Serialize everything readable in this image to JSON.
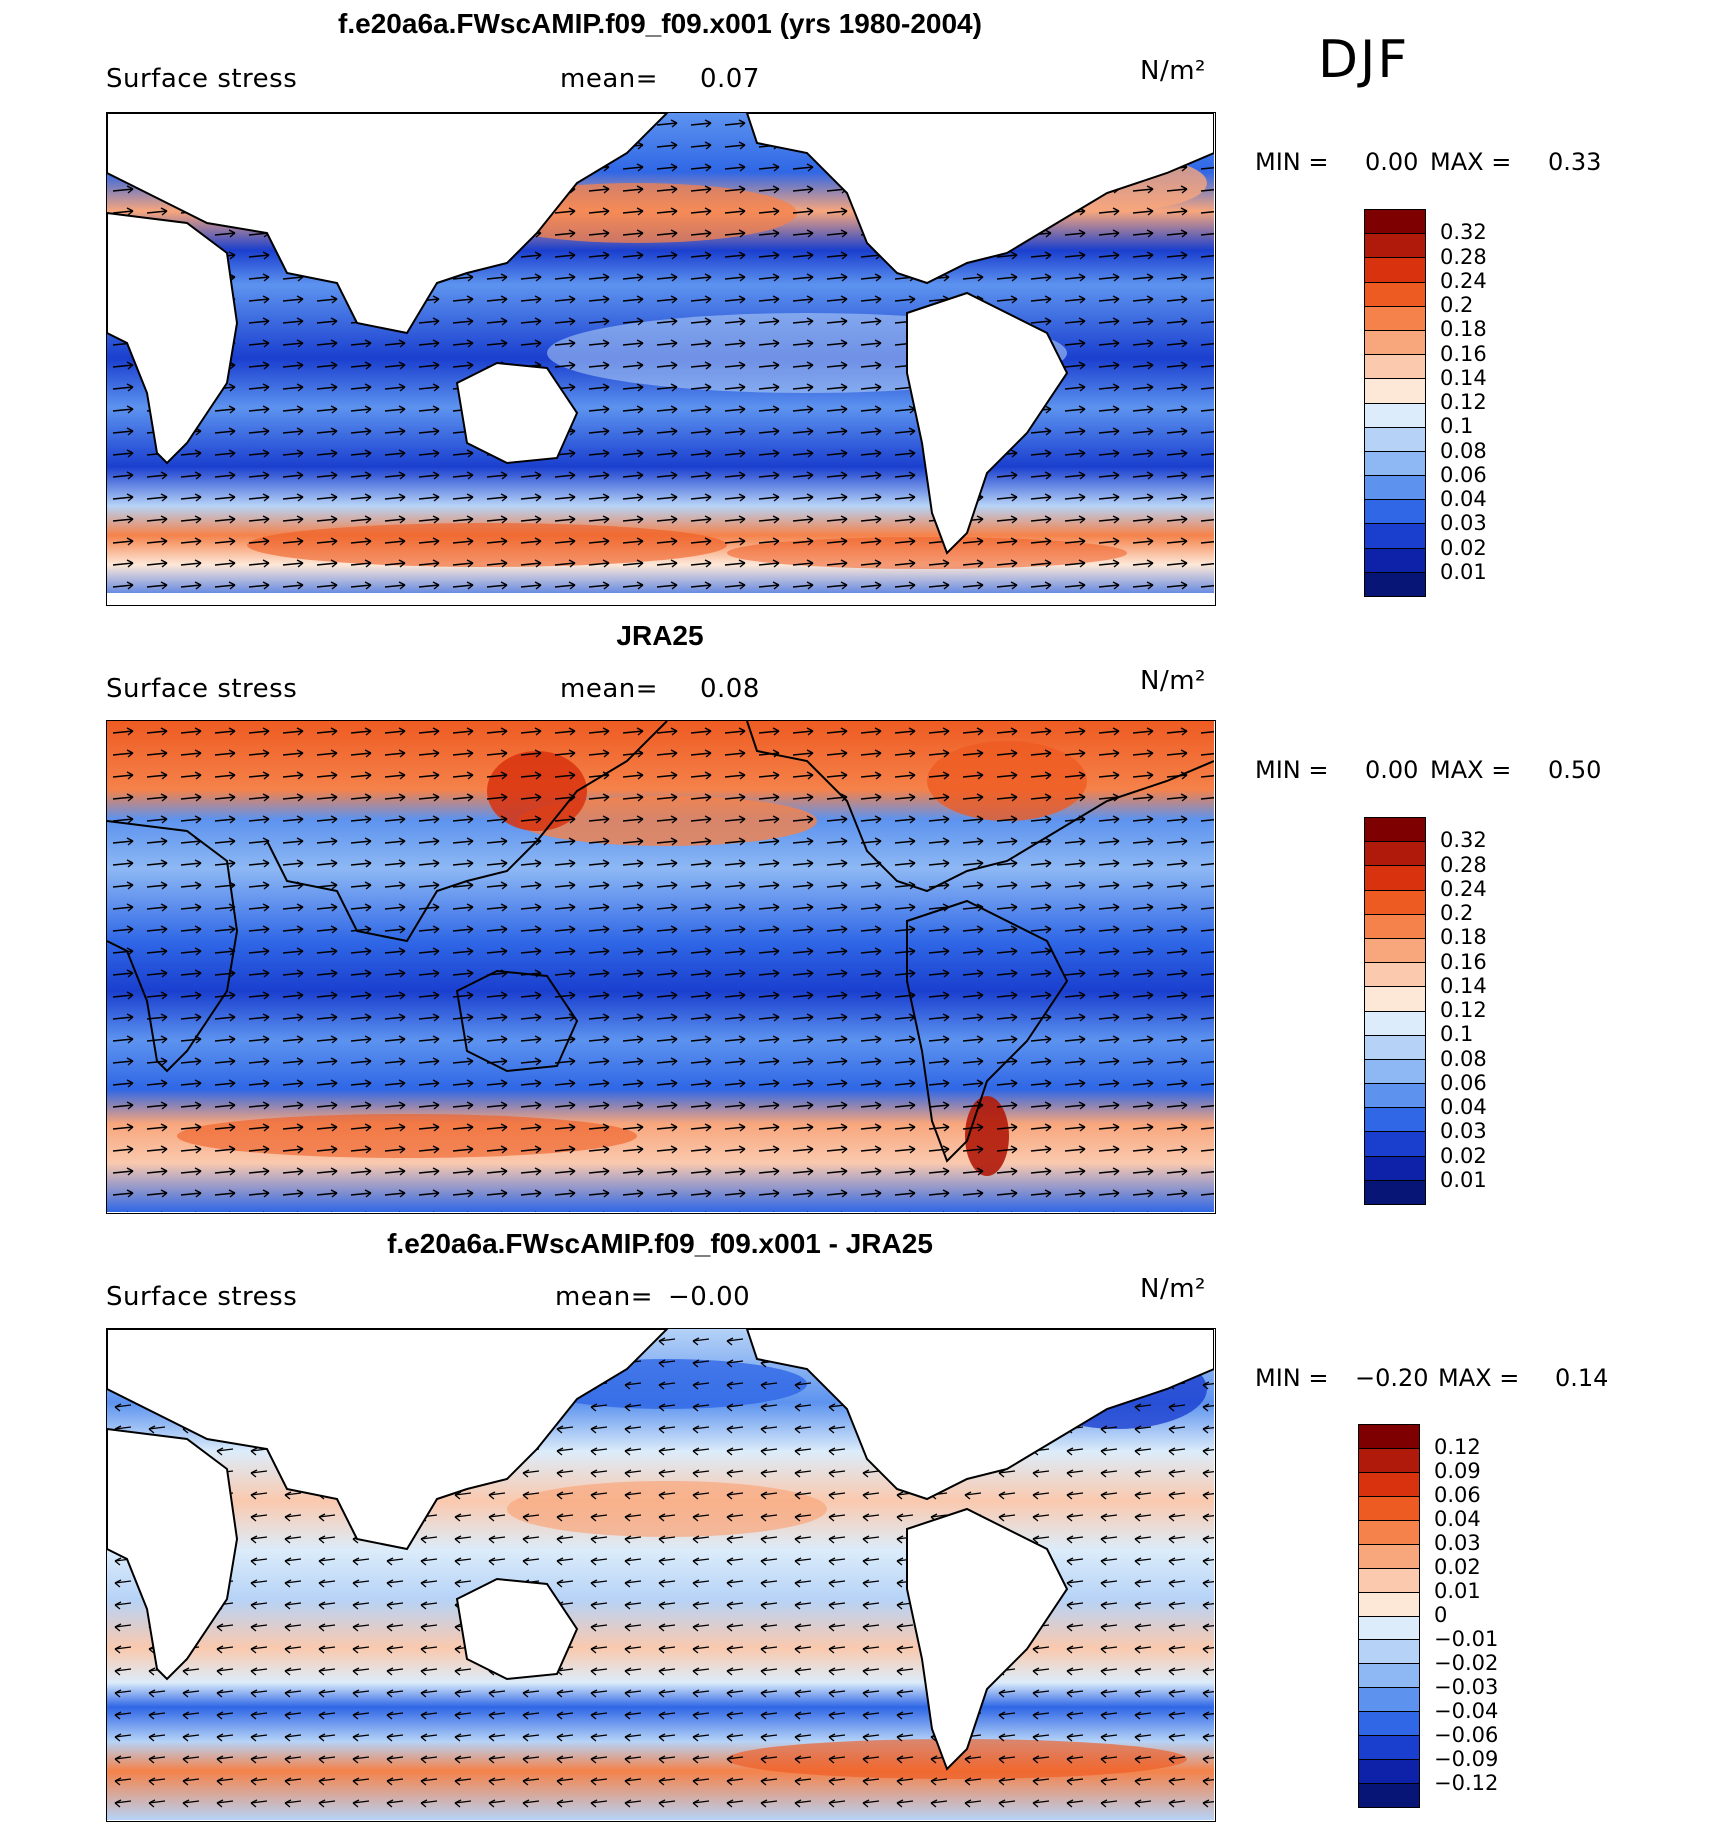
{
  "season": "DJF",
  "panels": [
    {
      "id": "model",
      "title": "f.e20a6a.FWscAMIP.f09_f09.x001 (yrs 1980-2004)",
      "variable": "Surface stress",
      "mean_label": "mean=",
      "mean_value": "0.07",
      "units": "N/m²",
      "min_label": "MIN =",
      "min_value": "0.00",
      "max_label": "MAX =",
      "max_value": "0.33",
      "colorbar_ticks": [
        "0.32",
        "0.28",
        "0.24",
        "0.2",
        "0.18",
        "0.16",
        "0.14",
        "0.12",
        "0.1",
        "0.08",
        "0.06",
        "0.04",
        "0.03",
        "0.02",
        "0.01"
      ],
      "colorbar_colors": [
        "#7f0000",
        "#b01a0a",
        "#d8330e",
        "#ee5b22",
        "#f5824a",
        "#f8a67c",
        "#fac9ae",
        "#fde8d8",
        "#dcecfa",
        "#b6d3f7",
        "#8eb8f4",
        "#5d93ef",
        "#2f67e6",
        "#1a3fcf",
        "#0d22a9",
        "#071577"
      ]
    },
    {
      "id": "obs",
      "title": "JRA25",
      "variable": "Surface stress",
      "mean_label": "mean=",
      "mean_value": "0.08",
      "units": "N/m²",
      "min_label": "MIN =",
      "min_value": "0.00",
      "max_label": "MAX =",
      "max_value": "0.50",
      "colorbar_ticks": [
        "0.32",
        "0.28",
        "0.24",
        "0.2",
        "0.18",
        "0.16",
        "0.14",
        "0.12",
        "0.1",
        "0.08",
        "0.06",
        "0.04",
        "0.03",
        "0.02",
        "0.01"
      ],
      "colorbar_colors": [
        "#7f0000",
        "#b01a0a",
        "#d8330e",
        "#ee5b22",
        "#f5824a",
        "#f8a67c",
        "#fac9ae",
        "#fde8d8",
        "#dcecfa",
        "#b6d3f7",
        "#8eb8f4",
        "#5d93ef",
        "#2f67e6",
        "#1a3fcf",
        "#0d22a9",
        "#071577"
      ]
    },
    {
      "id": "diff",
      "title": "f.e20a6a.FWscAMIP.f09_f09.x001 - JRA25",
      "variable": "Surface stress",
      "mean_label": "mean=",
      "mean_value": "−0.00",
      "units": "N/m²",
      "min_label": "MIN =",
      "min_value": "−0.20",
      "max_label": "MAX =",
      "max_value": "0.14",
      "colorbar_ticks": [
        "0.12",
        "0.09",
        "0.06",
        "0.04",
        "0.03",
        "0.02",
        "0.01",
        "0",
        "−0.01",
        "−0.02",
        "−0.03",
        "−0.04",
        "−0.06",
        "−0.09",
        "−0.12"
      ],
      "colorbar_colors": [
        "#7f0000",
        "#b01a0a",
        "#d8330e",
        "#ee5b22",
        "#f5824a",
        "#f8a67c",
        "#fac9ae",
        "#fde8d8",
        "#dcecfa",
        "#b6d3f7",
        "#8eb8f4",
        "#5d93ef",
        "#2f67e6",
        "#1a3fcf",
        "#0d22a9",
        "#071577"
      ]
    }
  ],
  "map_style": {
    "land_color": "#ffffff",
    "coastline_color": "#000000",
    "vector_color": "#000000"
  }
}
